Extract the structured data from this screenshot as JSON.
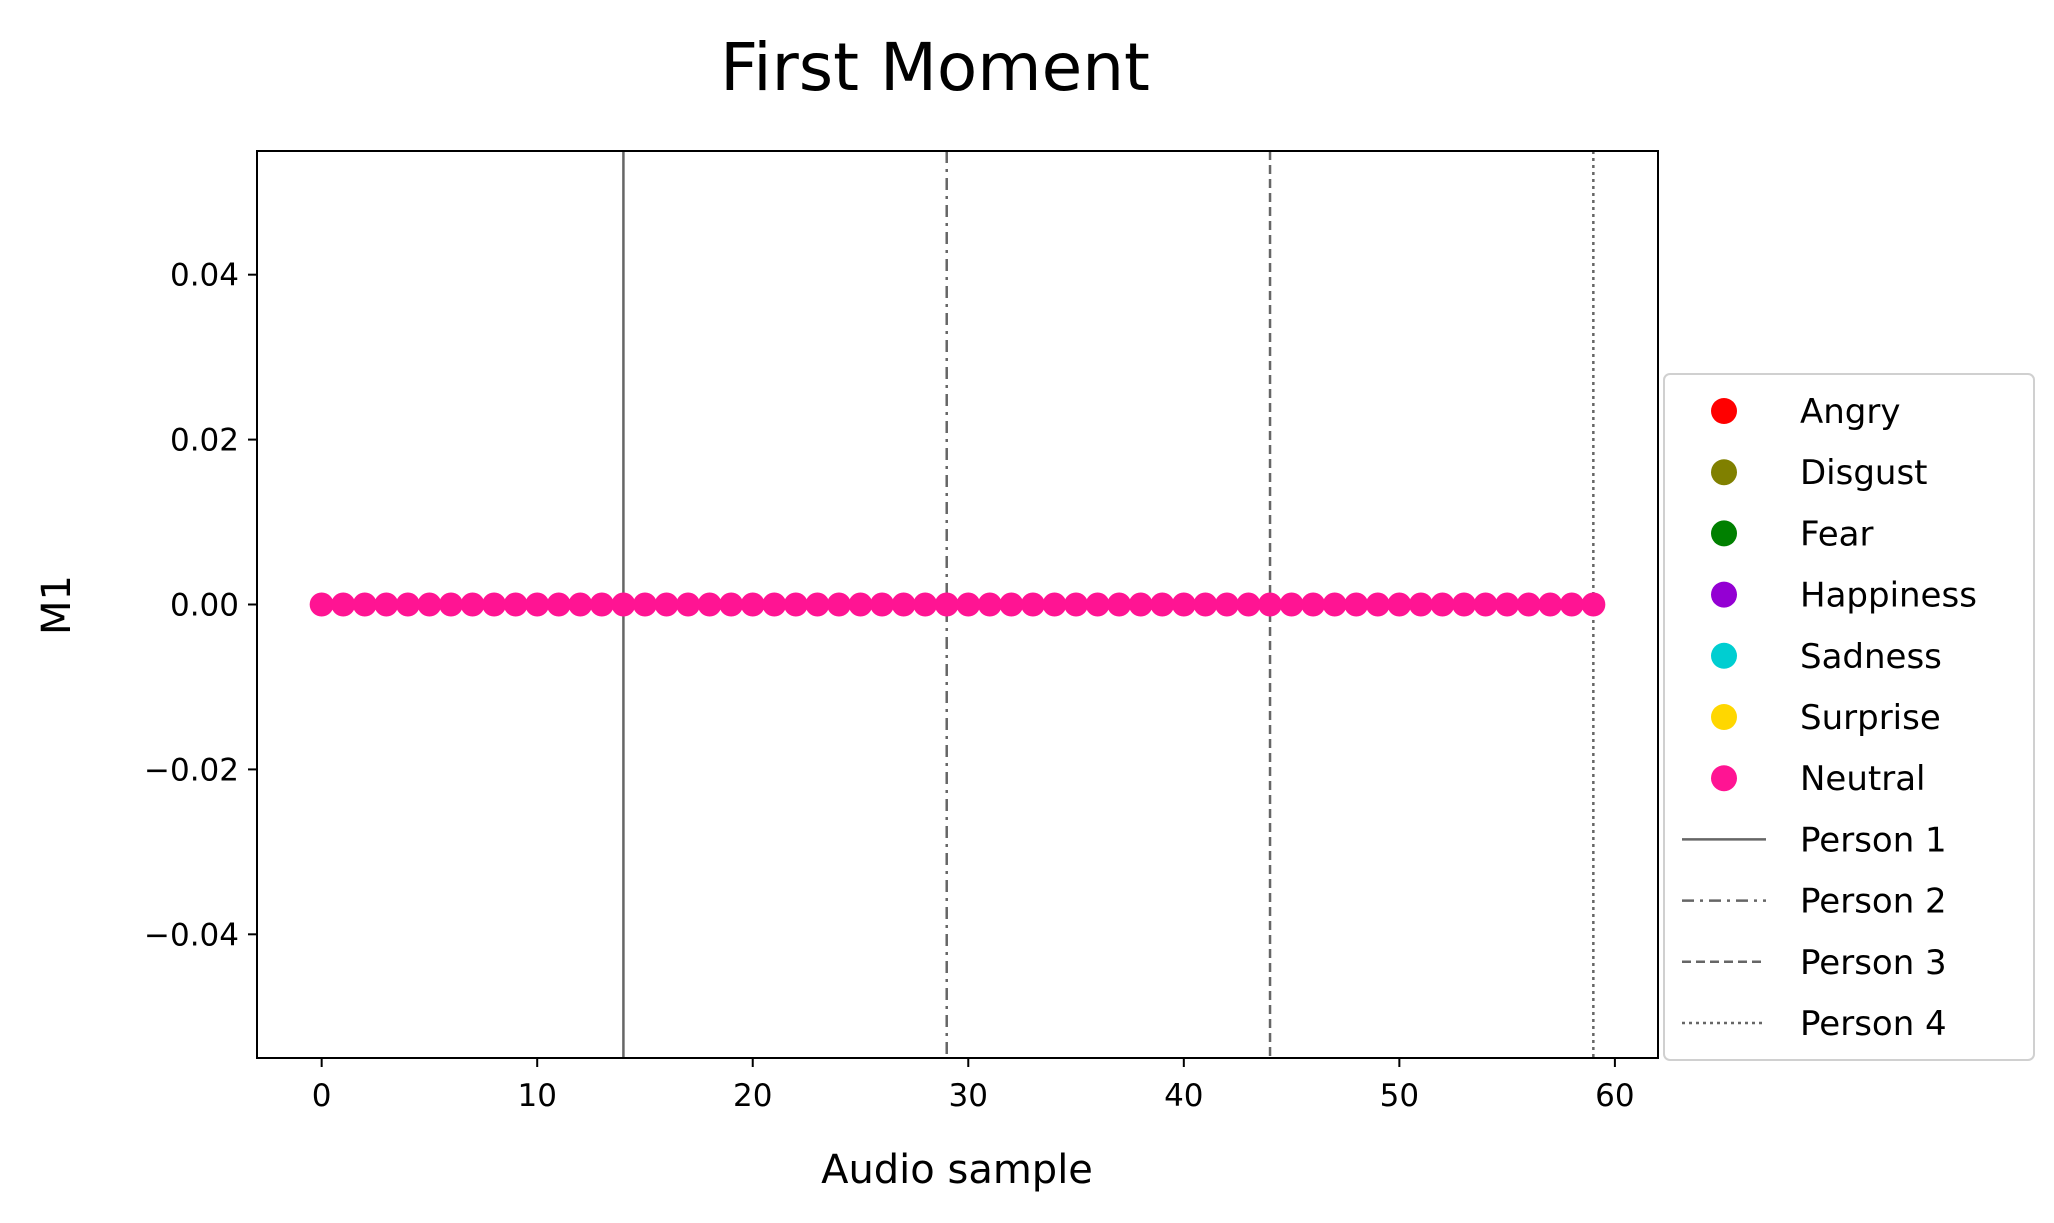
{
  "chart_data": {
    "type": "scatter",
    "title": "First Moment",
    "xlabel": "Audio sample",
    "ylabel": "M1",
    "xlim": [
      -3,
      62
    ],
    "ylim": [
      -0.055,
      0.055
    ],
    "xticks": [
      0,
      10,
      20,
      30,
      40,
      50,
      60
    ],
    "xtick_labels": [
      "0",
      "10",
      "20",
      "30",
      "40",
      "50",
      "60"
    ],
    "yticks": [
      0.04,
      0.02,
      0.0,
      -0.02,
      -0.04
    ],
    "ytick_labels": [
      "0.04",
      "0.02",
      "0.00",
      "−0.02",
      "−0.04"
    ],
    "grid": false,
    "legend_position": "center-right, outside plot",
    "series": [
      {
        "name": "Angry",
        "color": "#ff0000",
        "x": [],
        "y": []
      },
      {
        "name": "Disgust",
        "color": "#808000",
        "x": [],
        "y": []
      },
      {
        "name": "Fear",
        "color": "#008000",
        "x": [],
        "y": []
      },
      {
        "name": "Happiness",
        "color": "#9400d3",
        "x": [],
        "y": []
      },
      {
        "name": "Sadness",
        "color": "#00ced1",
        "x": [],
        "y": []
      },
      {
        "name": "Surprise",
        "color": "#ffd700",
        "x": [],
        "y": []
      },
      {
        "name": "Neutral",
        "color": "#ff1493",
        "x": [
          0,
          1,
          2,
          3,
          4,
          5,
          6,
          7,
          8,
          9,
          10,
          11,
          12,
          13,
          14,
          15,
          16,
          17,
          18,
          19,
          20,
          21,
          22,
          23,
          24,
          25,
          26,
          27,
          28,
          29,
          30,
          31,
          32,
          33,
          34,
          35,
          36,
          37,
          38,
          39,
          40,
          41,
          42,
          43,
          44,
          45,
          46,
          47,
          48,
          49,
          50,
          51,
          52,
          53,
          54,
          55,
          56,
          57,
          58,
          59
        ],
        "y": [
          0,
          0,
          0,
          0,
          0,
          0,
          0,
          0,
          0,
          0,
          0,
          0,
          0,
          0,
          0,
          0,
          0,
          0,
          0,
          0,
          0,
          0,
          0,
          0,
          0,
          0,
          0,
          0,
          0,
          0,
          0,
          0,
          0,
          0,
          0,
          0,
          0,
          0,
          0,
          0,
          0,
          0,
          0,
          0,
          0,
          0,
          0,
          0,
          0,
          0,
          0,
          0,
          0,
          0,
          0,
          0,
          0,
          0,
          0,
          0
        ]
      }
    ],
    "vlines": [
      {
        "name": "Person 1",
        "x": 14,
        "style": "solid",
        "color": "#666666"
      },
      {
        "name": "Person 2",
        "x": 29,
        "style": "dashdot",
        "color": "#666666"
      },
      {
        "name": "Person 3",
        "x": 44,
        "style": "dashed",
        "color": "#666666"
      },
      {
        "name": "Person 4",
        "x": 59,
        "style": "dotted",
        "color": "#666666"
      }
    ]
  }
}
